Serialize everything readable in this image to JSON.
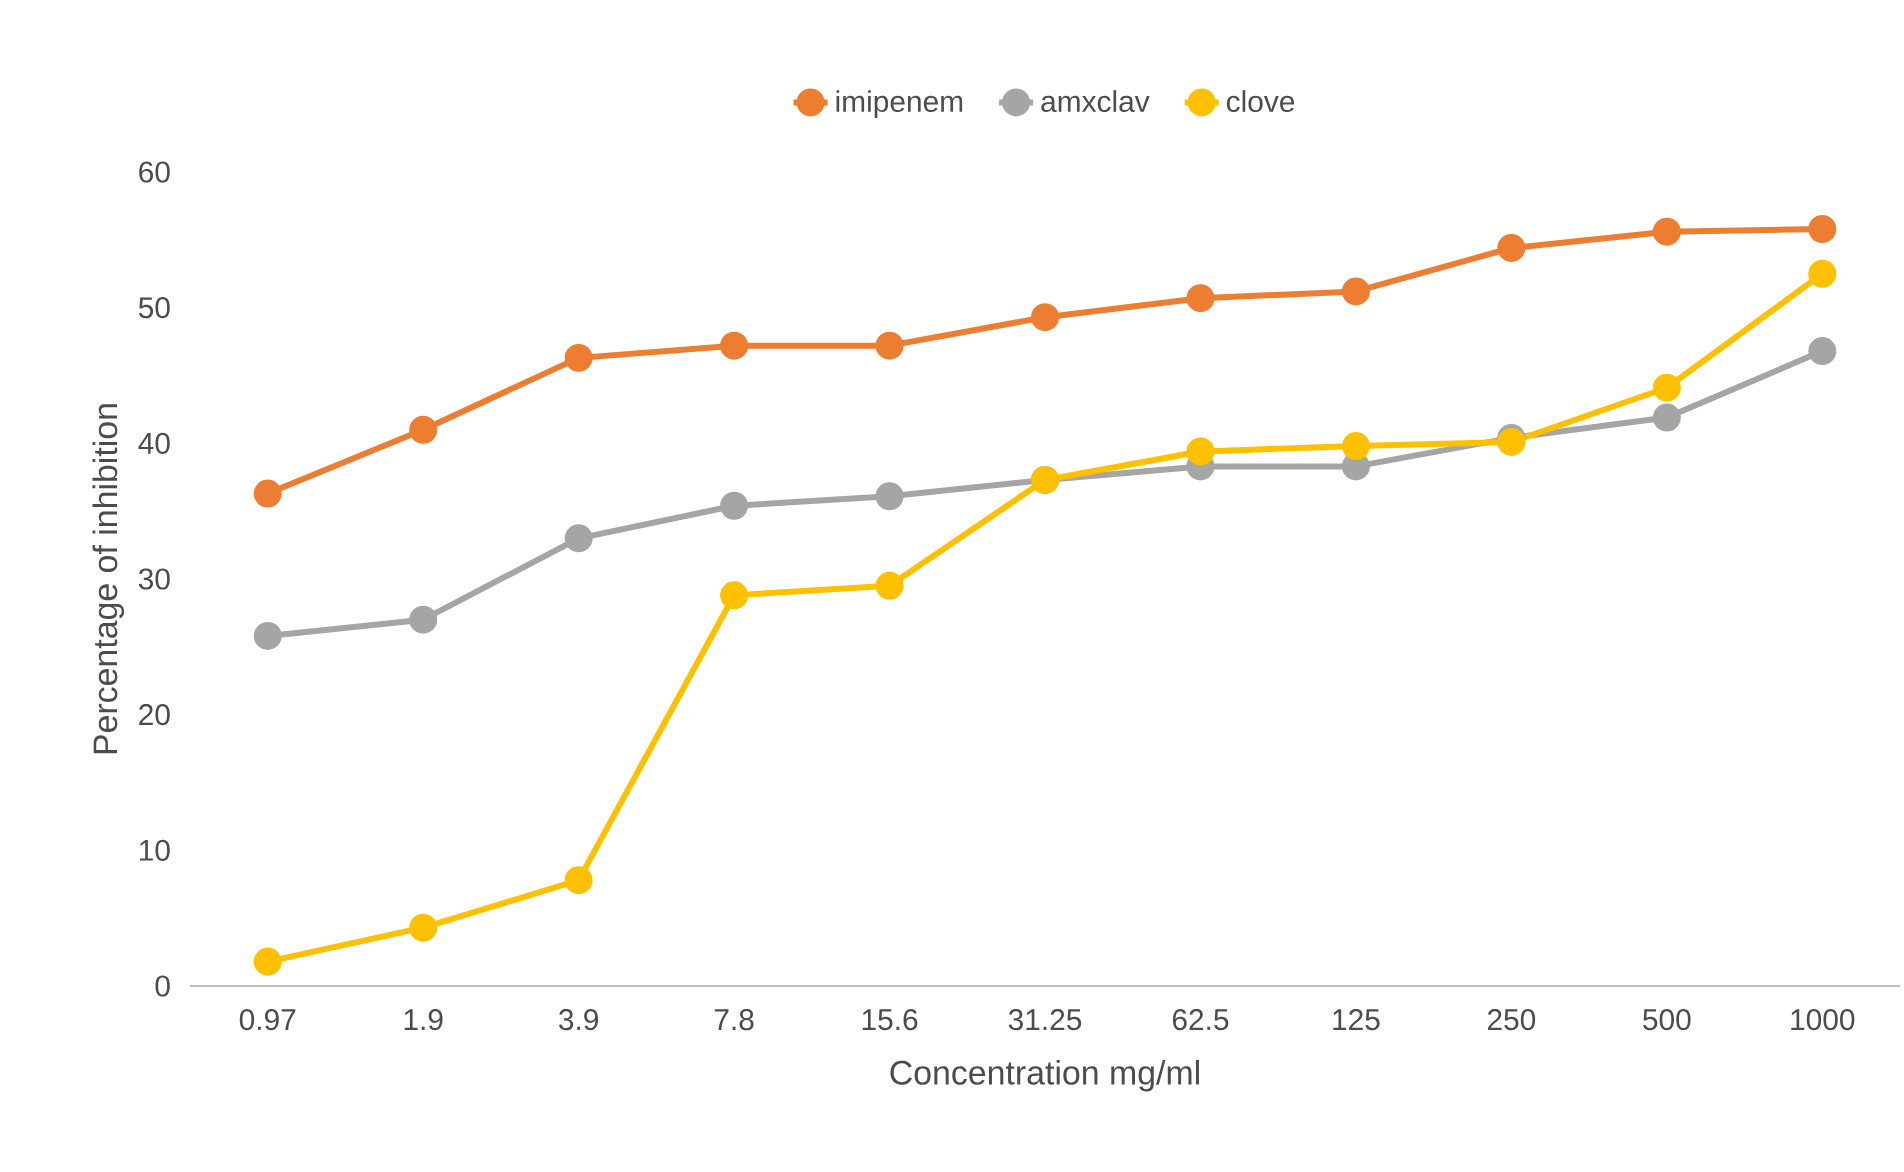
{
  "chart_data": {
    "type": "line",
    "xlabel": "Concentration mg/ml",
    "ylabel": "Percentage of inhibition",
    "categories": [
      "0.97",
      "1.9",
      "3.9",
      "7.8",
      "15.6",
      "31.25",
      "62.5",
      "125",
      "250",
      "500",
      "1000"
    ],
    "series": [
      {
        "name": "imipenem",
        "color": "#ed7d31",
        "values": [
          36.3,
          41.0,
          46.3,
          47.2,
          47.2,
          49.3,
          50.7,
          51.2,
          54.4,
          55.6,
          55.8
        ]
      },
      {
        "name": "amxclav",
        "color": "#a5a5a5",
        "values": [
          25.8,
          27.0,
          33.0,
          35.4,
          36.1,
          37.3,
          38.3,
          38.3,
          40.4,
          41.9,
          46.8
        ]
      },
      {
        "name": "clove",
        "color": "#ffc000",
        "values": [
          1.8,
          4.3,
          7.8,
          28.8,
          29.5,
          37.3,
          39.4,
          39.8,
          40.1,
          44.1,
          52.5
        ]
      }
    ],
    "ylim": [
      0,
      60
    ],
    "yticks": [
      0,
      10,
      20,
      30,
      40,
      50,
      60
    ],
    "legend": "top",
    "marker": "circle",
    "line_style": "solid"
  }
}
